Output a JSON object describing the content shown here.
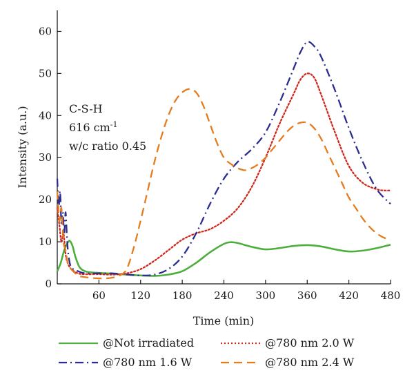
{
  "chart_data": {
    "type": "line",
    "xlabel": "Time (min)",
    "ylabel": "Intensity (a.u.)",
    "xlim": [
      0,
      480
    ],
    "ylim": [
      0,
      65
    ],
    "xticks": [
      60,
      120,
      180,
      240,
      300,
      360,
      420,
      480
    ],
    "yticks": [
      0,
      10,
      20,
      30,
      40,
      50,
      60
    ],
    "grid": false,
    "legend_position": "bottom",
    "annotation": {
      "line1": "C-S-H",
      "line2_value": "616 cm",
      "line2_sup": "-1",
      "line3": "w/c ratio 0.45"
    },
    "series": [
      {
        "name": "@Not irradiated",
        "color": "#4caf3c",
        "dash": "solid",
        "x": [
          0,
          5,
          10,
          15,
          18,
          22,
          26,
          32,
          40,
          50,
          60,
          80,
          100,
          120,
          140,
          160,
          180,
          200,
          220,
          240,
          250,
          260,
          280,
          300,
          320,
          340,
          360,
          380,
          400,
          420,
          440,
          460,
          480
        ],
        "y": [
          3,
          5,
          8,
          9.8,
          10.2,
          9,
          6.5,
          4,
          3,
          2.7,
          2.6,
          2.4,
          2.2,
          2.0,
          1.9,
          2.2,
          3.0,
          5.0,
          7.5,
          9.5,
          9.9,
          9.7,
          8.8,
          8.2,
          8.5,
          9.0,
          9.2,
          8.9,
          8.2,
          7.7,
          7.9,
          8.5,
          9.3
        ]
      },
      {
        "name": "@780 nm 2.0 W",
        "color": "#d0261c",
        "dash": "dotted",
        "x": [
          0,
          3,
          6,
          9,
          12,
          15,
          20,
          30,
          40,
          60,
          80,
          100,
          120,
          140,
          160,
          180,
          200,
          220,
          240,
          260,
          280,
          300,
          320,
          340,
          350,
          360,
          370,
          380,
          400,
          420,
          440,
          460,
          470,
          480
        ],
        "y": [
          18,
          14,
          10,
          12,
          7,
          5,
          3.5,
          2.5,
          2.3,
          2.3,
          2.2,
          2.5,
          3.5,
          5.5,
          8,
          10.5,
          12,
          13,
          15,
          18,
          23,
          30,
          38,
          45,
          48.5,
          50,
          49,
          45,
          36,
          28,
          24,
          22.5,
          22.2,
          22.2
        ]
      },
      {
        "name": "@780 nm 1.6 W",
        "color": "#2a2c8f",
        "dash": "dashdot",
        "x": [
          0,
          2,
          4,
          6,
          8,
          10,
          12,
          14,
          16,
          20,
          30,
          40,
          60,
          80,
          100,
          120,
          140,
          160,
          180,
          200,
          220,
          240,
          260,
          280,
          300,
          320,
          340,
          350,
          360,
          370,
          380,
          400,
          420,
          440,
          460,
          480
        ],
        "y": [
          25,
          18,
          22,
          14,
          17,
          12,
          17,
          11,
          7,
          4,
          3,
          2.5,
          2.5,
          2.5,
          2.2,
          2.0,
          2.2,
          3.5,
          6.5,
          12,
          19,
          25,
          29,
          32,
          36,
          43,
          51,
          55,
          57.5,
          56.5,
          54,
          46,
          37,
          29,
          22.5,
          19
        ]
      },
      {
        "name": "@780 nm 2.4 W",
        "color": "#e47b1e",
        "dash": "dashed",
        "x": [
          0,
          3,
          6,
          9,
          12,
          15,
          20,
          30,
          40,
          50,
          60,
          70,
          80,
          90,
          100,
          110,
          120,
          130,
          140,
          150,
          160,
          170,
          180,
          190,
          200,
          210,
          220,
          230,
          240,
          250,
          260,
          270,
          280,
          290,
          300,
          310,
          320,
          330,
          340,
          350,
          360,
          370,
          380,
          390,
          400,
          410,
          420,
          430,
          440,
          450,
          460,
          470,
          480
        ],
        "y": [
          22,
          15,
          18,
          10,
          8,
          5,
          3.5,
          2,
          1.6,
          1.4,
          1.3,
          1.3,
          1.5,
          2.0,
          3.5,
          8.5,
          15,
          22,
          29,
          35,
          40,
          43.5,
          45.5,
          46.3,
          45.5,
          42.5,
          38,
          33.5,
          30,
          28.5,
          27.5,
          27,
          27.5,
          28.5,
          30,
          32,
          34,
          36,
          37.5,
          38.3,
          38.3,
          37,
          34.5,
          31,
          27.5,
          24,
          20.5,
          18,
          15.5,
          13.5,
          12,
          11,
          10.5
        ]
      }
    ]
  }
}
